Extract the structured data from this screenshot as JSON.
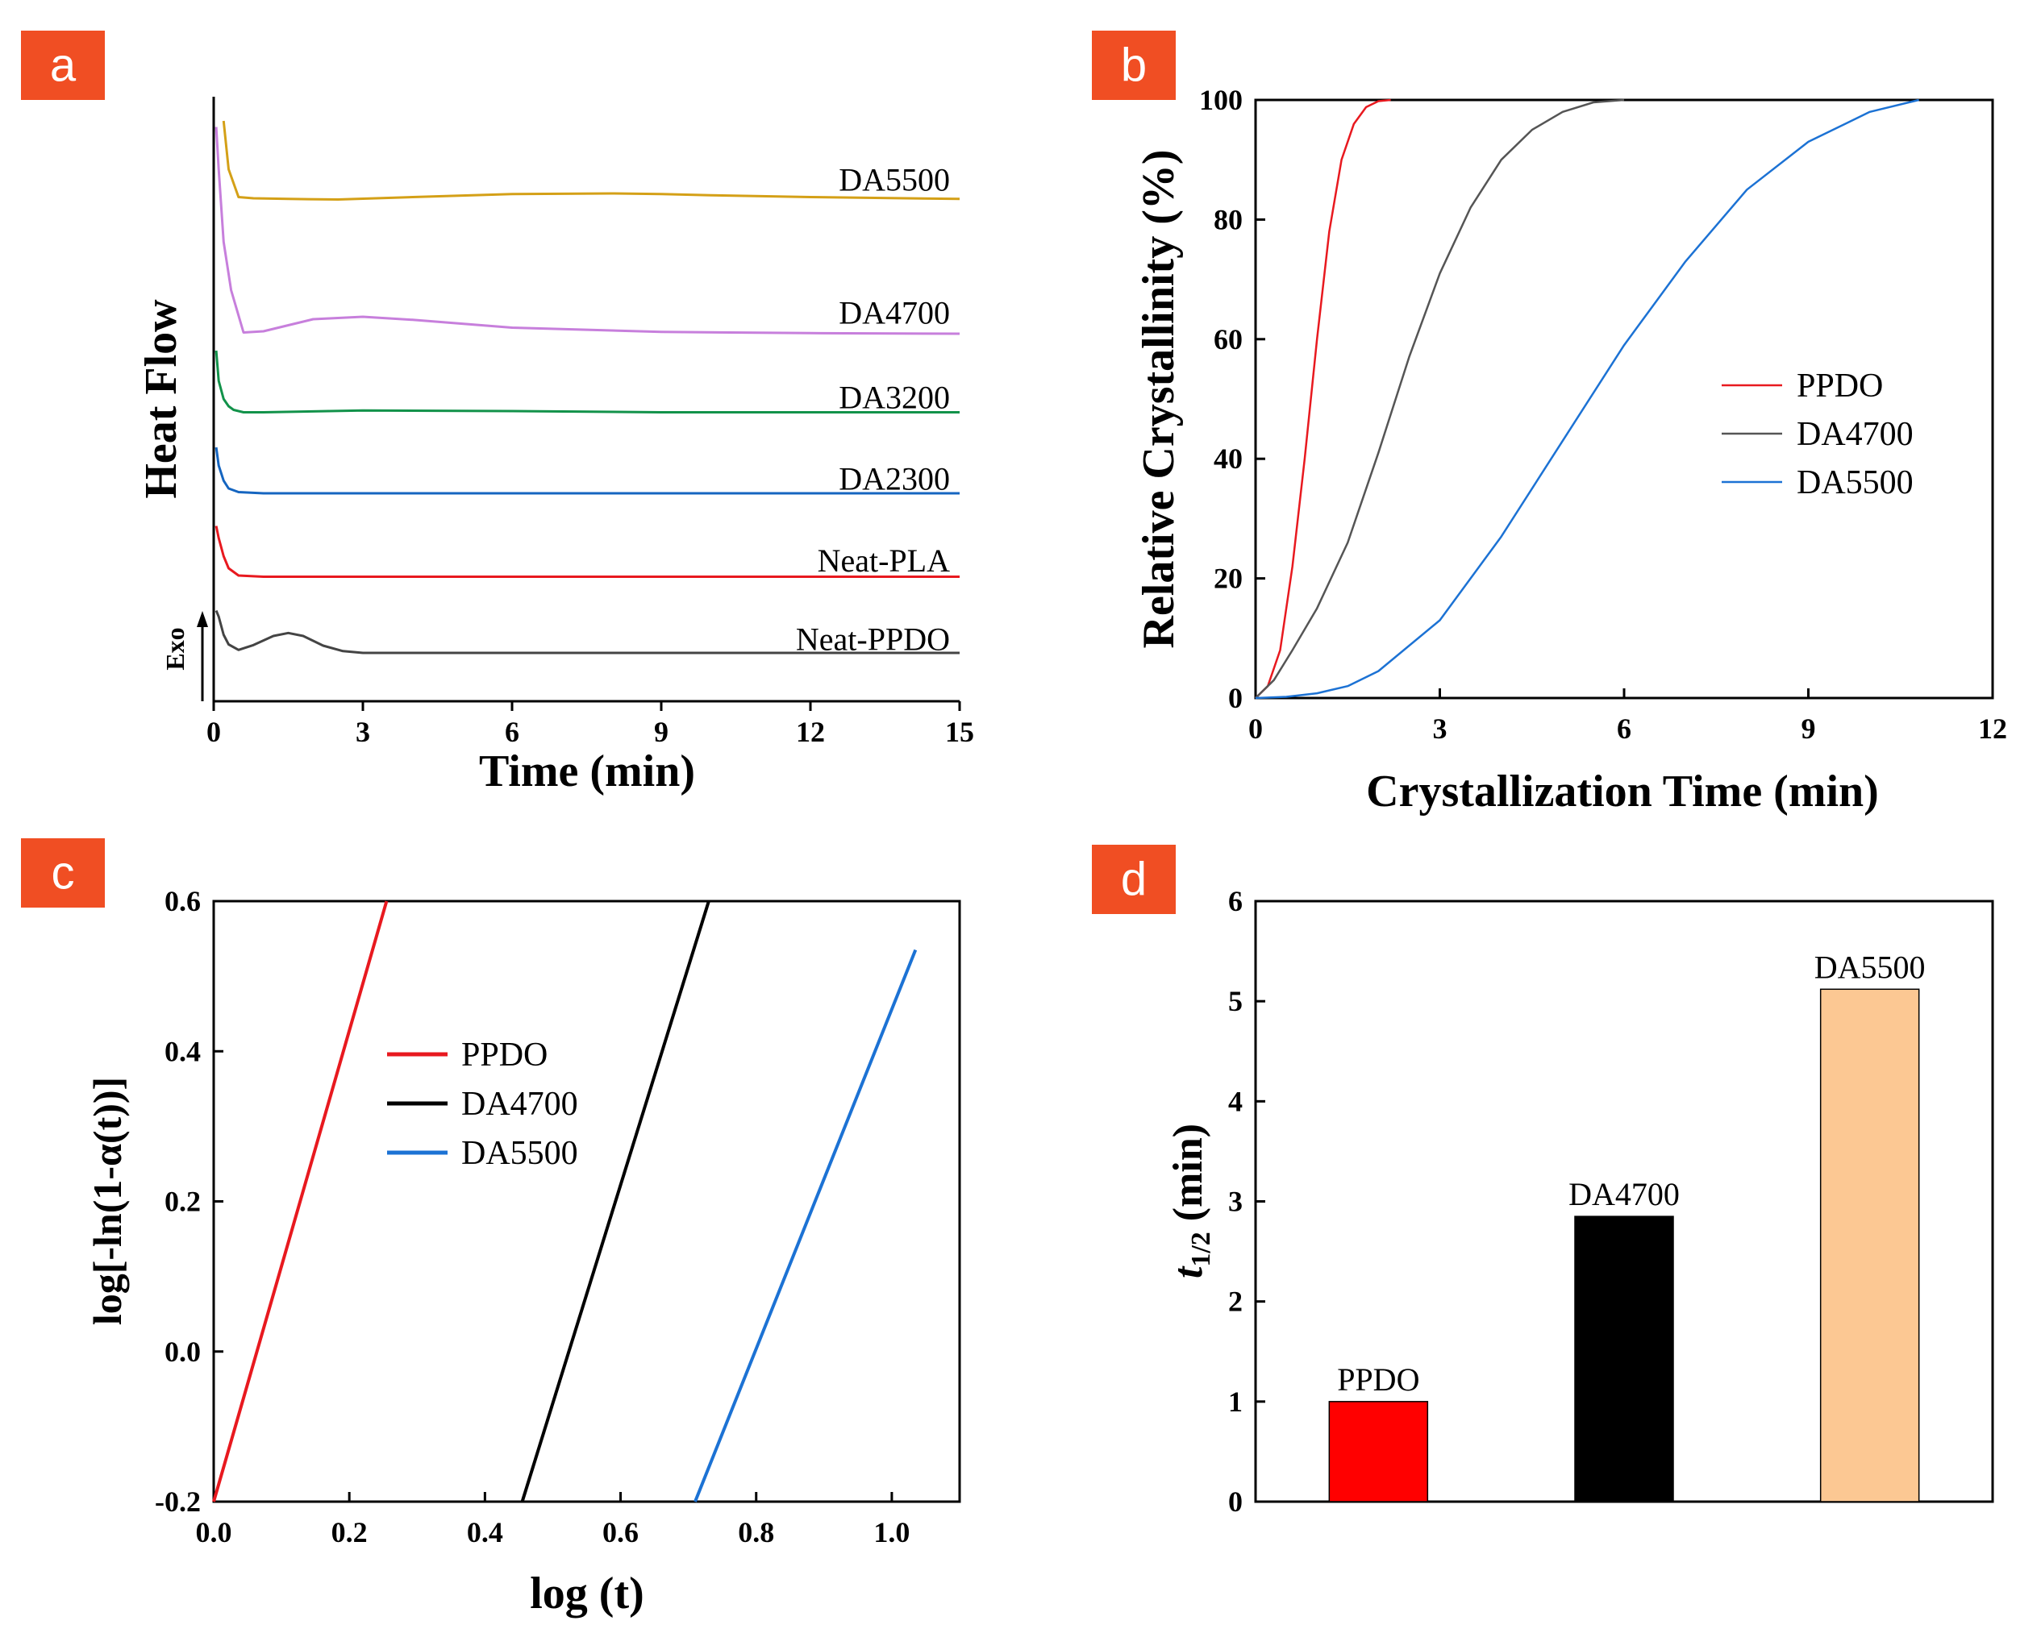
{
  "chart_data": [
    {
      "panel": "a",
      "type": "line",
      "xlabel": "Time (min)",
      "ylabel": "Heat Flow",
      "xlim": [
        0,
        15
      ],
      "xticks": [
        0,
        3,
        6,
        9,
        12,
        15
      ],
      "annotation": "Exo",
      "series": [
        {
          "name": "DA5500",
          "color": "#d4a017",
          "x": [
            0.2,
            0.3,
            0.5,
            0.8,
            1.5,
            2.5,
            4,
            6,
            8,
            9,
            10,
            12,
            15
          ],
          "y": [
            96,
            88,
            83.4,
            83.2,
            83.1,
            83.0,
            83.4,
            83.9,
            84.0,
            83.9,
            83.7,
            83.4,
            83.1
          ]
        },
        {
          "name": "DA4700",
          "color": "#c77fdc",
          "x": [
            0.05,
            0.1,
            0.2,
            0.35,
            0.6,
            1,
            1.5,
            2,
            3,
            4,
            6,
            9,
            12,
            15
          ],
          "y": [
            95,
            88,
            76,
            68,
            61,
            61.2,
            62.2,
            63.2,
            63.6,
            63.1,
            61.8,
            61.1,
            60.9,
            60.8
          ]
        },
        {
          "name": "DA3200",
          "color": "#12924a",
          "x": [
            0.05,
            0.1,
            0.2,
            0.3,
            0.4,
            0.6,
            1,
            3,
            6,
            9,
            12,
            15
          ],
          "y": [
            58,
            53,
            50,
            48.8,
            48.2,
            47.8,
            47.8,
            48.1,
            48.0,
            47.8,
            47.8,
            47.8
          ]
        },
        {
          "name": "DA2300",
          "color": "#1565c0",
          "x": [
            0.05,
            0.1,
            0.2,
            0.3,
            0.5,
            1,
            3,
            6,
            9,
            12,
            15
          ],
          "y": [
            42,
            39,
            36.5,
            35.2,
            34.6,
            34.4,
            34.4,
            34.4,
            34.4,
            34.4,
            34.4
          ]
        },
        {
          "name": "Neat-PLA",
          "color": "#e8191f",
          "x": [
            0.05,
            0.1,
            0.2,
            0.3,
            0.5,
            1,
            3,
            6,
            9,
            12,
            15
          ],
          "y": [
            29,
            27,
            24,
            22,
            20.8,
            20.6,
            20.6,
            20.6,
            20.6,
            20.6,
            20.6
          ]
        },
        {
          "name": "Neat-PPDO",
          "color": "#444444",
          "x": [
            0.05,
            0.1,
            0.2,
            0.3,
            0.5,
            0.8,
            1.2,
            1.5,
            1.8,
            2.2,
            2.6,
            3,
            6,
            9,
            12,
            15
          ],
          "y": [
            15,
            14,
            11,
            9.4,
            8.5,
            9.3,
            10.8,
            11.3,
            10.8,
            9.2,
            8.3,
            8.0,
            8.0,
            8.0,
            8.0,
            8.0
          ]
        }
      ],
      "label_positions_ymap": [
        84.5,
        62.5,
        48.5,
        35,
        21.5,
        8.5
      ]
    },
    {
      "panel": "b",
      "type": "line",
      "xlabel": "Crystallization Time (min)",
      "ylabel": "Relative Crystallinity (%)",
      "xlim": [
        0,
        12
      ],
      "ylim": [
        0,
        100
      ],
      "xticks": [
        0,
        3,
        6,
        9,
        12
      ],
      "yticks": [
        0,
        20,
        40,
        60,
        80,
        100
      ],
      "legend": "right",
      "series": [
        {
          "name": "PPDO",
          "color": "#e8191f",
          "x": [
            0,
            0.2,
            0.4,
            0.6,
            0.8,
            1.0,
            1.2,
            1.4,
            1.6,
            1.8,
            2.0,
            2.2
          ],
          "y": [
            0,
            2,
            8,
            22,
            40,
            60,
            78,
            90,
            96,
            98.8,
            99.8,
            100
          ]
        },
        {
          "name": "DA4700",
          "color": "#555555",
          "x": [
            0,
            0.3,
            0.6,
            1.0,
            1.5,
            2.0,
            2.5,
            3.0,
            3.5,
            4.0,
            4.5,
            5.0,
            5.5,
            6.0
          ],
          "y": [
            0,
            3,
            8,
            15,
            26,
            41,
            57,
            71,
            82,
            90,
            95,
            98,
            99.6,
            100
          ]
        },
        {
          "name": "DA5500",
          "color": "#1c72d4",
          "x": [
            0,
            0.5,
            1,
            1.5,
            2,
            3,
            4,
            5,
            6,
            7,
            8,
            9,
            10,
            10.8
          ],
          "y": [
            0,
            0.2,
            0.8,
            2,
            4.5,
            13,
            27,
            43,
            59,
            73,
            85,
            93,
            98,
            100
          ]
        }
      ]
    },
    {
      "panel": "c",
      "type": "line",
      "xlabel": "log (t)",
      "ylabel": "log[-ln(1-α(t))]",
      "xlim": [
        0,
        1.1
      ],
      "ylim": [
        -0.2,
        0.6
      ],
      "xticks": [
        0.0,
        0.2,
        0.4,
        0.6,
        0.8,
        1.0
      ],
      "yticks": [
        -0.2,
        0.0,
        0.2,
        0.4,
        0.6
      ],
      "legend": "center-left",
      "series": [
        {
          "name": "PPDO",
          "color": "#e8191f",
          "x": [
            0.0,
            0.255
          ],
          "y": [
            -0.2,
            0.6
          ]
        },
        {
          "name": "DA4700",
          "color": "#000000",
          "x": [
            0.455,
            0.73
          ],
          "y": [
            -0.2,
            0.6
          ]
        },
        {
          "name": "DA5500",
          "color": "#1c72d4",
          "x": [
            0.71,
            1.035
          ],
          "y": [
            -0.2,
            0.535
          ]
        }
      ]
    },
    {
      "panel": "d",
      "type": "bar",
      "xlabel": "",
      "ylabel_main": "t",
      "ylabel_sub": "1/2",
      "ylabel_unit": " (min)",
      "ylim": [
        0,
        6
      ],
      "yticks": [
        0,
        1,
        2,
        3,
        4,
        5,
        6
      ],
      "categories": [
        "PPDO",
        "DA4700",
        "DA5500"
      ],
      "values": [
        1.0,
        2.85,
        5.12
      ],
      "colors": [
        "#ff0000",
        "#000000",
        "#fcc893"
      ]
    }
  ],
  "badges": [
    "a",
    "b",
    "c",
    "d"
  ]
}
